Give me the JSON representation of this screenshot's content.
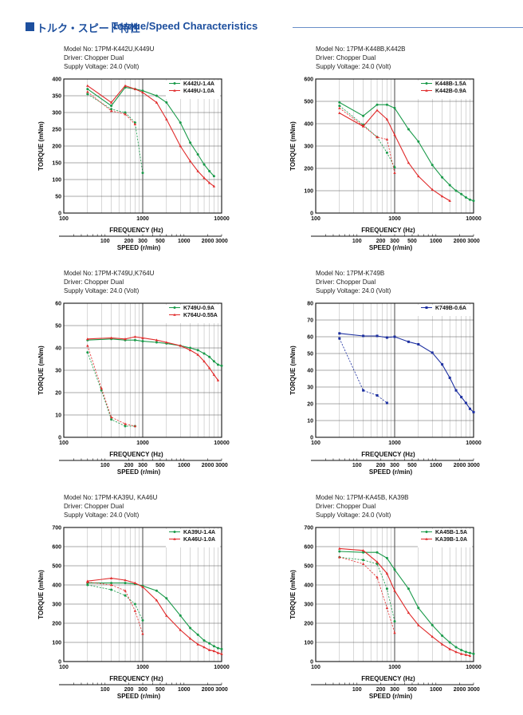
{
  "header": {
    "title_jp": "トルク・スピード特性",
    "title_en": "Torque/Speed Characteristics",
    "accent_color": "#1d4f9e"
  },
  "common": {
    "xlabel": "FREQUENCY (Hz)",
    "ylabel": "TORQUE (mNm)",
    "speed_label": "SPEED (r/min)",
    "x_ticks": [
      "100",
      "1000",
      "10000"
    ],
    "speed_ticks": [
      "100",
      "200",
      "300",
      "500",
      "1000",
      "2000",
      "3000"
    ]
  },
  "chart_data": [
    {
      "type": "line",
      "model": "Model No: 17PM-K442U,K449U",
      "driver": "Driver: Chopper Dual",
      "supply": "Supply Voltage: 24.0 (Volt)",
      "x_scale": "log",
      "xlim": [
        100,
        10000
      ],
      "ylim": [
        0,
        400
      ],
      "y_step": 50,
      "legend_position": "top-right",
      "grid": true,
      "series": [
        {
          "name": "K442U-1.4A",
          "color": "#1a9a4a",
          "marker": "dot",
          "pullout": [
            [
              200,
              370
            ],
            [
              400,
              320
            ],
            [
              600,
              375
            ],
            [
              800,
              370
            ],
            [
              1000,
              365
            ],
            [
              1500,
              350
            ],
            [
              2000,
              330
            ],
            [
              3000,
              270
            ],
            [
              4000,
              210
            ],
            [
              5000,
              175
            ],
            [
              6000,
              145
            ],
            [
              7000,
              125
            ],
            [
              8000,
              110
            ]
          ],
          "pullin": [
            [
              200,
              355
            ],
            [
              400,
              310
            ],
            [
              600,
              300
            ],
            [
              800,
              270
            ],
            [
              1000,
              120
            ]
          ]
        },
        {
          "name": "K449U-1.0A",
          "color": "#e02a2a",
          "marker": "tri",
          "pullout": [
            [
              200,
              380
            ],
            [
              400,
              330
            ],
            [
              600,
              380
            ],
            [
              800,
              370
            ],
            [
              1000,
              360
            ],
            [
              1500,
              330
            ],
            [
              2000,
              280
            ],
            [
              3000,
              200
            ],
            [
              4000,
              155
            ],
            [
              5000,
              125
            ],
            [
              6000,
              105
            ],
            [
              7000,
              90
            ],
            [
              8000,
              80
            ]
          ],
          "pullin": [
            [
              200,
              362
            ],
            [
              400,
              305
            ],
            [
              600,
              295
            ],
            [
              800,
              265
            ]
          ]
        }
      ]
    },
    {
      "type": "line",
      "model": "Model No: 17PM-K448B,K442B",
      "driver": "Driver: Chopper Dual",
      "supply": "Supply Voltage: 24.0 (Volt)",
      "x_scale": "log",
      "xlim": [
        100,
        10000
      ],
      "ylim": [
        0,
        600
      ],
      "y_step": 100,
      "legend_position": "top-right",
      "grid": true,
      "series": [
        {
          "name": "K448B-1.5A",
          "color": "#1a9a4a",
          "marker": "dot",
          "pullout": [
            [
              200,
              495
            ],
            [
              400,
              435
            ],
            [
              600,
              485
            ],
            [
              800,
              485
            ],
            [
              1000,
              470
            ],
            [
              1500,
              375
            ],
            [
              2000,
              320
            ],
            [
              3000,
              215
            ],
            [
              4000,
              160
            ],
            [
              5000,
              125
            ],
            [
              6000,
              100
            ],
            [
              7000,
              85
            ],
            [
              8000,
              70
            ],
            [
              9000,
              60
            ],
            [
              10000,
              55
            ]
          ],
          "pullin": [
            [
              200,
              480
            ],
            [
              400,
              395
            ],
            [
              600,
              340
            ],
            [
              800,
              270
            ],
            [
              1000,
              205
            ]
          ]
        },
        {
          "name": "K442B-0.9A",
          "color": "#e02a2a",
          "marker": "tri",
          "pullout": [
            [
              200,
              448
            ],
            [
              400,
              388
            ],
            [
              600,
              460
            ],
            [
              800,
              420
            ],
            [
              1000,
              350
            ],
            [
              1500,
              225
            ],
            [
              2000,
              165
            ],
            [
              3000,
              105
            ],
            [
              4000,
              75
            ],
            [
              5000,
              55
            ]
          ],
          "pullin": [
            [
              200,
              470
            ],
            [
              400,
              390
            ],
            [
              600,
              340
            ],
            [
              800,
              330
            ],
            [
              1000,
              180
            ]
          ]
        }
      ]
    },
    {
      "type": "line",
      "model": "Model No: 17PM-K749U,K764U",
      "driver": "Driver: Chopper Dual",
      "supply": "Supply Voltage: 24.0 (Volt)",
      "x_scale": "log",
      "xlim": [
        100,
        10000
      ],
      "ylim": [
        0,
        60
      ],
      "y_step": 10,
      "legend_position": "top-right",
      "grid": true,
      "series": [
        {
          "name": "K749U-0.9A",
          "color": "#1a9a4a",
          "marker": "dot",
          "pullout": [
            [
              200,
              43.5
            ],
            [
              400,
              44
            ],
            [
              600,
              43.5
            ],
            [
              800,
              43.5
            ],
            [
              1000,
              43
            ],
            [
              1500,
              42.5
            ],
            [
              2000,
              42
            ],
            [
              3000,
              41
            ],
            [
              4000,
              40
            ],
            [
              5000,
              39
            ],
            [
              6000,
              37.5
            ],
            [
              7000,
              36
            ],
            [
              8000,
              34
            ],
            [
              9000,
              32.5
            ],
            [
              10000,
              32
            ]
          ],
          "pullin": [
            [
              200,
              38
            ],
            [
              300,
              21
            ],
            [
              400,
              8
            ],
            [
              600,
              5
            ],
            [
              800,
              5
            ]
          ]
        },
        {
          "name": "K764U-0.55A",
          "color": "#e02a2a",
          "marker": "tri",
          "pullout": [
            [
              200,
              44
            ],
            [
              400,
              44.5
            ],
            [
              600,
              44
            ],
            [
              800,
              45
            ],
            [
              1000,
              44.5
            ],
            [
              1500,
              43.5
            ],
            [
              2000,
              42.5
            ],
            [
              3000,
              41
            ],
            [
              4000,
              39
            ],
            [
              5000,
              37
            ],
            [
              6000,
              34
            ],
            [
              7000,
              31
            ],
            [
              8000,
              28
            ],
            [
              9000,
              25.5
            ]
          ],
          "pullin": [
            [
              200,
              41
            ],
            [
              300,
              22
            ],
            [
              400,
              9
            ],
            [
              600,
              6
            ],
            [
              800,
              5
            ]
          ]
        }
      ]
    },
    {
      "type": "line",
      "model": "Model No: 17PM-K749B",
      "driver": "Driver: Chopper Dual",
      "supply": "Supply Voltage: 24.0 (Volt)",
      "x_scale": "log",
      "xlim": [
        100,
        10000
      ],
      "ylim": [
        0,
        80
      ],
      "y_step": 10,
      "legend_position": "top-right",
      "grid": true,
      "series": [
        {
          "name": "K749B-0.6A",
          "color": "#1c2fa0",
          "marker": "square",
          "pullout": [
            [
              200,
              62
            ],
            [
              400,
              60.5
            ],
            [
              600,
              60.5
            ],
            [
              800,
              59.5
            ],
            [
              1000,
              60
            ],
            [
              1500,
              57
            ],
            [
              2000,
              55.5
            ],
            [
              3000,
              50.5
            ],
            [
              4000,
              43.5
            ],
            [
              5000,
              35.5
            ],
            [
              6000,
              28
            ],
            [
              7000,
              24
            ],
            [
              8000,
              20.5
            ],
            [
              9000,
              17
            ],
            [
              10000,
              15
            ]
          ],
          "pullin": [
            [
              200,
              59
            ],
            [
              400,
              28
            ],
            [
              600,
              25
            ],
            [
              800,
              20.5
            ]
          ]
        }
      ]
    },
    {
      "type": "line",
      "model": "Model No: 17PM-KA39U, KA46U",
      "driver": "Driver: Chopper Dual",
      "supply": "Supply Voltage: 24.0 (Volt)",
      "x_scale": "log",
      "xlim": [
        100,
        10000
      ],
      "ylim": [
        0,
        700
      ],
      "y_step": 100,
      "legend_position": "top-right",
      "grid": true,
      "series": [
        {
          "name": "KA39U-1.4A",
          "color": "#1a9a4a",
          "marker": "dot",
          "pullout": [
            [
              200,
              410
            ],
            [
              400,
              410
            ],
            [
              600,
              410
            ],
            [
              800,
              405
            ],
            [
              1000,
              395
            ],
            [
              1500,
              370
            ],
            [
              2000,
              330
            ],
            [
              3000,
              240
            ],
            [
              4000,
              175
            ],
            [
              5000,
              140
            ],
            [
              6000,
              110
            ],
            [
              7000,
              95
            ],
            [
              8000,
              80
            ],
            [
              9000,
              70
            ],
            [
              10000,
              65
            ]
          ],
          "pullin": [
            [
              200,
              400
            ],
            [
              400,
              375
            ],
            [
              600,
              345
            ],
            [
              800,
              300
            ],
            [
              1000,
              215
            ]
          ]
        },
        {
          "name": "KA46U-1.0A",
          "color": "#e02a2a",
          "marker": "tri",
          "pullout": [
            [
              200,
              420
            ],
            [
              400,
              435
            ],
            [
              600,
              425
            ],
            [
              800,
              410
            ],
            [
              1000,
              390
            ],
            [
              1500,
              320
            ],
            [
              2000,
              240
            ],
            [
              3000,
              165
            ],
            [
              4000,
              120
            ],
            [
              5000,
              90
            ],
            [
              6000,
              75
            ],
            [
              7000,
              60
            ],
            [
              8000,
              55
            ],
            [
              9000,
              45
            ],
            [
              10000,
              40
            ]
          ],
          "pullin": [
            [
              200,
              415
            ],
            [
              400,
              400
            ],
            [
              600,
              370
            ],
            [
              800,
              265
            ],
            [
              1000,
              145
            ]
          ]
        }
      ]
    },
    {
      "type": "line",
      "model": "Model No: 17PM-KA45B, KA39B",
      "driver": "Driver: Chopper Dual",
      "supply": "Supply Voltage: 24.0 (Volt)",
      "x_scale": "log",
      "xlim": [
        100,
        10000
      ],
      "ylim": [
        0,
        700
      ],
      "y_step": 100,
      "legend_position": "top-right",
      "grid": true,
      "series": [
        {
          "name": "KA45B-1.5A",
          "color": "#1a9a4a",
          "marker": "dot",
          "pullout": [
            [
              200,
              575
            ],
            [
              400,
              570
            ],
            [
              600,
              570
            ],
            [
              800,
              540
            ],
            [
              1000,
              480
            ],
            [
              1500,
              380
            ],
            [
              2000,
              280
            ],
            [
              3000,
              190
            ],
            [
              4000,
              135
            ],
            [
              5000,
              100
            ],
            [
              6000,
              75
            ],
            [
              7000,
              60
            ],
            [
              8000,
              50
            ],
            [
              9000,
              45
            ],
            [
              10000,
              40
            ]
          ],
          "pullin": [
            [
              200,
              545
            ],
            [
              400,
              530
            ],
            [
              600,
              510
            ],
            [
              800,
              380
            ],
            [
              1000,
              210
            ]
          ]
        },
        {
          "name": "KA39B-1.0A",
          "color": "#e02a2a",
          "marker": "tri",
          "pullout": [
            [
              200,
              590
            ],
            [
              400,
              580
            ],
            [
              600,
              520
            ],
            [
              800,
              460
            ],
            [
              1000,
              370
            ],
            [
              1500,
              255
            ],
            [
              2000,
              190
            ],
            [
              3000,
              130
            ],
            [
              4000,
              90
            ],
            [
              5000,
              65
            ],
            [
              6000,
              50
            ],
            [
              7000,
              40
            ],
            [
              8000,
              35
            ],
            [
              9000,
              30
            ]
          ],
          "pullin": [
            [
              200,
              545
            ],
            [
              400,
              510
            ],
            [
              600,
              440
            ],
            [
              800,
              280
            ],
            [
              1000,
              150
            ]
          ]
        }
      ]
    }
  ]
}
